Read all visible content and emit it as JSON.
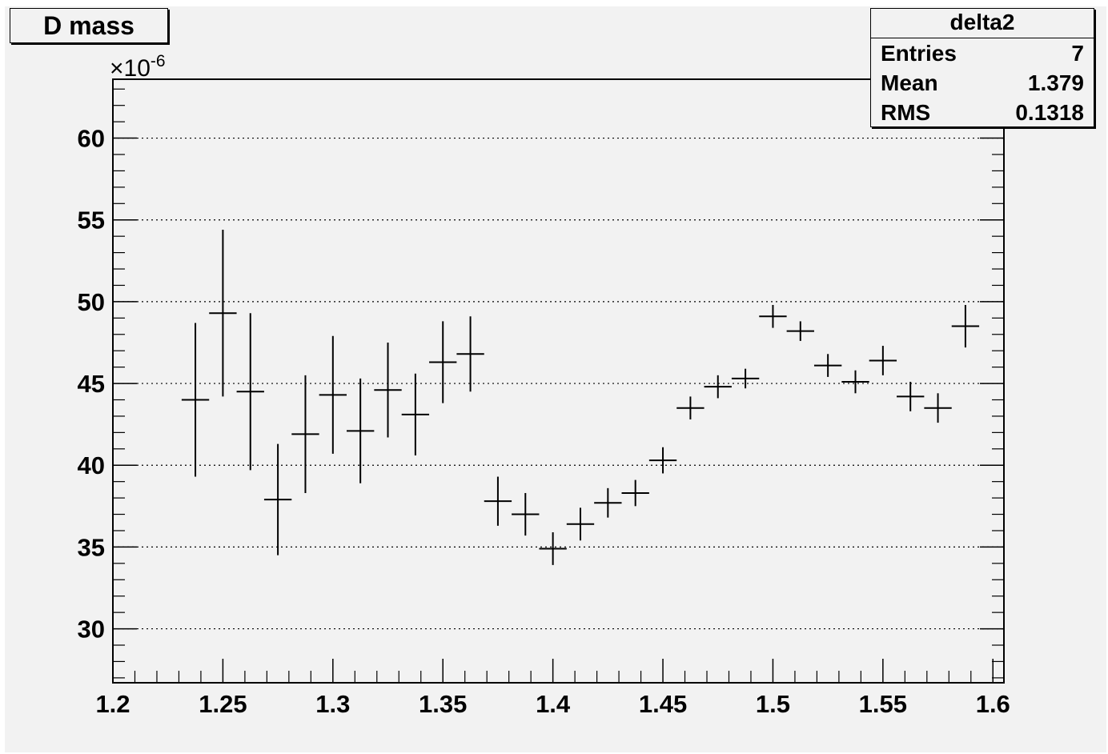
{
  "title_box": {
    "label": "D mass"
  },
  "stats_box": {
    "name": "delta2",
    "rows": [
      {
        "label": "Entries",
        "value": "7"
      },
      {
        "label": "Mean",
        "value": "1.379"
      },
      {
        "label": "RMS",
        "value": "0.1318"
      }
    ]
  },
  "chart_data": {
    "type": "scatter",
    "title": "D mass",
    "xlabel": "",
    "ylabel": "",
    "y_multiplier_label": "×10",
    "y_multiplier_exponent": "-6",
    "xlim": [
      1.2,
      1.605
    ],
    "ylim": [
      26.7,
      63.6
    ],
    "x_ticks": [
      "1.2",
      "1.25",
      "1.3",
      "1.35",
      "1.4",
      "1.45",
      "1.5",
      "1.55",
      "1.6"
    ],
    "y_ticks": [
      "30",
      "35",
      "40",
      "45",
      "50",
      "55",
      "60"
    ],
    "grid": {
      "x": false,
      "y": true
    },
    "colors": {
      "frame": "#000000",
      "grid": "#000000",
      "background": "#f2f2f2"
    },
    "series": [
      {
        "points": [
          {
            "x": 1.2375,
            "y": 44.0,
            "xerr": 0.00625,
            "err": 4.7
          },
          {
            "x": 1.25,
            "y": 49.3,
            "xerr": 0.00625,
            "err": 5.1
          },
          {
            "x": 1.2625,
            "y": 44.5,
            "xerr": 0.00625,
            "err": 4.8
          },
          {
            "x": 1.275,
            "y": 37.9,
            "xerr": 0.00625,
            "err": 3.4
          },
          {
            "x": 1.2875,
            "y": 41.9,
            "xerr": 0.00625,
            "err": 3.6
          },
          {
            "x": 1.3,
            "y": 44.3,
            "xerr": 0.00625,
            "err": 3.6
          },
          {
            "x": 1.3125,
            "y": 42.1,
            "xerr": 0.00625,
            "err": 3.2
          },
          {
            "x": 1.325,
            "y": 44.6,
            "xerr": 0.00625,
            "err": 2.9
          },
          {
            "x": 1.3375,
            "y": 43.1,
            "xerr": 0.00625,
            "err": 2.5
          },
          {
            "x": 1.35,
            "y": 46.3,
            "xerr": 0.00625,
            "err": 2.5
          },
          {
            "x": 1.3625,
            "y": 46.8,
            "xerr": 0.00625,
            "err": 2.3
          },
          {
            "x": 1.375,
            "y": 37.8,
            "xerr": 0.00625,
            "err": 1.5
          },
          {
            "x": 1.3875,
            "y": 37.0,
            "xerr": 0.00625,
            "err": 1.3
          },
          {
            "x": 1.4,
            "y": 34.9,
            "xerr": 0.00625,
            "err": 1.0
          },
          {
            "x": 1.4125,
            "y": 36.4,
            "xerr": 0.00625,
            "err": 1.0
          },
          {
            "x": 1.425,
            "y": 37.7,
            "xerr": 0.00625,
            "err": 0.9
          },
          {
            "x": 1.4375,
            "y": 38.3,
            "xerr": 0.00625,
            "err": 0.8
          },
          {
            "x": 1.45,
            "y": 40.3,
            "xerr": 0.00625,
            "err": 0.8
          },
          {
            "x": 1.4625,
            "y": 43.5,
            "xerr": 0.00625,
            "err": 0.7
          },
          {
            "x": 1.475,
            "y": 44.8,
            "xerr": 0.00625,
            "err": 0.7
          },
          {
            "x": 1.4875,
            "y": 45.3,
            "xerr": 0.00625,
            "err": 0.6
          },
          {
            "x": 1.5,
            "y": 49.1,
            "xerr": 0.00625,
            "err": 0.7
          },
          {
            "x": 1.5125,
            "y": 48.2,
            "xerr": 0.00625,
            "err": 0.6
          },
          {
            "x": 1.525,
            "y": 46.1,
            "xerr": 0.00625,
            "err": 0.7
          },
          {
            "x": 1.5375,
            "y": 45.1,
            "xerr": 0.00625,
            "err": 0.7
          },
          {
            "x": 1.55,
            "y": 46.4,
            "xerr": 0.00625,
            "err": 0.9
          },
          {
            "x": 1.5625,
            "y": 44.2,
            "xerr": 0.00625,
            "err": 0.9
          },
          {
            "x": 1.575,
            "y": 43.5,
            "xerr": 0.00625,
            "err": 0.9
          },
          {
            "x": 1.5875,
            "y": 48.5,
            "xerr": 0.00625,
            "err": 1.3
          }
        ]
      }
    ]
  }
}
